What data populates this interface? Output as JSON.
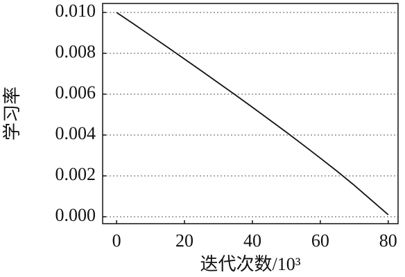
{
  "chart_data": {
    "type": "line",
    "x_label": "迭代次数/10³",
    "y_label": "学习率",
    "x": [
      0,
      5,
      10,
      15,
      20,
      25,
      30,
      35,
      40,
      45,
      50,
      55,
      60,
      65,
      70,
      75,
      80
    ],
    "series": [
      {
        "name": "学习率",
        "color": "#111111",
        "values": [
          0.01,
          0.00944,
          0.00887,
          0.0083,
          0.00772,
          0.00714,
          0.00655,
          0.00596,
          0.00536,
          0.00475,
          0.00414,
          0.00351,
          0.00287,
          0.00222,
          0.00154,
          0.00082,
          0.0001
        ]
      }
    ],
    "xlim": [
      -4.1,
      82.9
    ],
    "ylim": [
      -0.00034,
      0.01044
    ],
    "xticks": [
      0,
      20,
      40,
      60,
      80
    ],
    "yticks": [
      {
        "value": 0,
        "label": "0.000"
      },
      {
        "value": 0.002,
        "label": "0.002"
      },
      {
        "value": 0.004,
        "label": "0.004"
      },
      {
        "value": 0.006,
        "label": "0.006"
      },
      {
        "value": 0.008,
        "label": "0.008"
      },
      {
        "value": 0.01,
        "label": "0.010"
      }
    ],
    "grid": true
  }
}
